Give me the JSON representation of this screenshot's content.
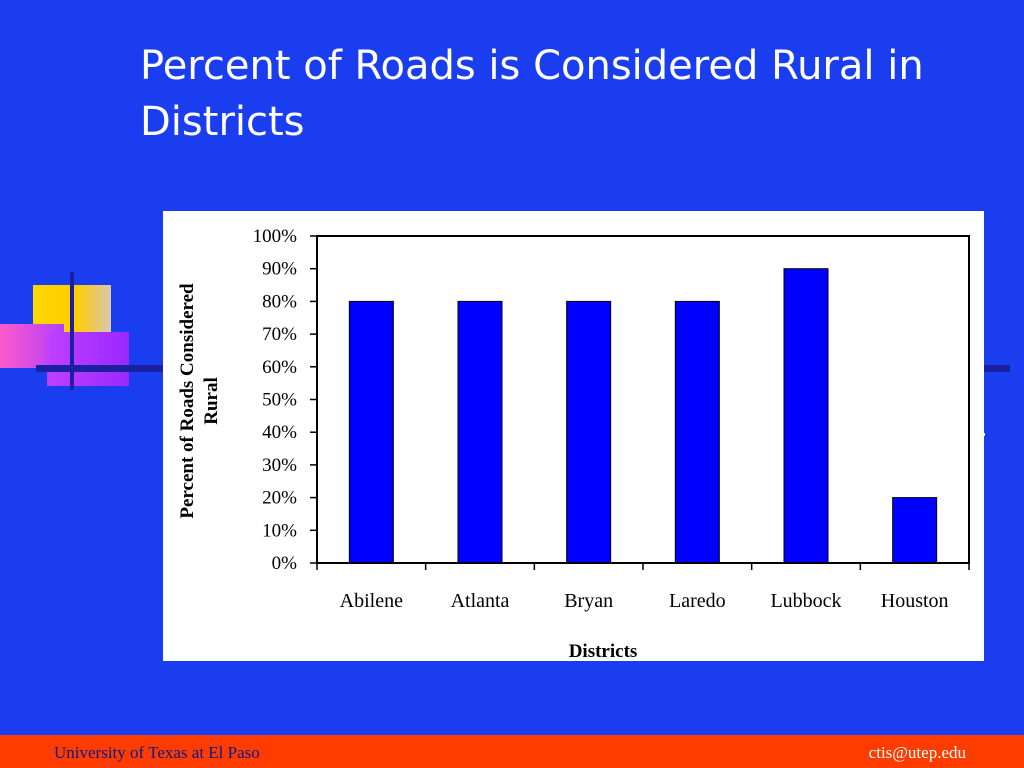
{
  "slide": {
    "title": "Percent of Roads is Considered Rural in Districts"
  },
  "footer": {
    "left_text": "University of Texas at El Paso",
    "right_text": "ctis@utep.edu"
  },
  "colors": {
    "background": "#1a3df0",
    "bar": "#0000ff",
    "footer": "#ff3c00"
  },
  "chart_data": {
    "type": "bar",
    "categories": [
      "Abilene",
      "Atlanta",
      "Bryan",
      "Laredo",
      "Lubbock",
      "Houston"
    ],
    "values": [
      80,
      80,
      80,
      80,
      90,
      20
    ],
    "title": "",
    "xlabel": "Districts",
    "ylabel": "Percent of Roads Considered Rural",
    "ylim": [
      0,
      100
    ],
    "yticks": [
      "0%",
      "10%",
      "20%",
      "30%",
      "40%",
      "50%",
      "60%",
      "70%",
      "80%",
      "90%",
      "100%"
    ],
    "grid": false,
    "legend": "none"
  }
}
